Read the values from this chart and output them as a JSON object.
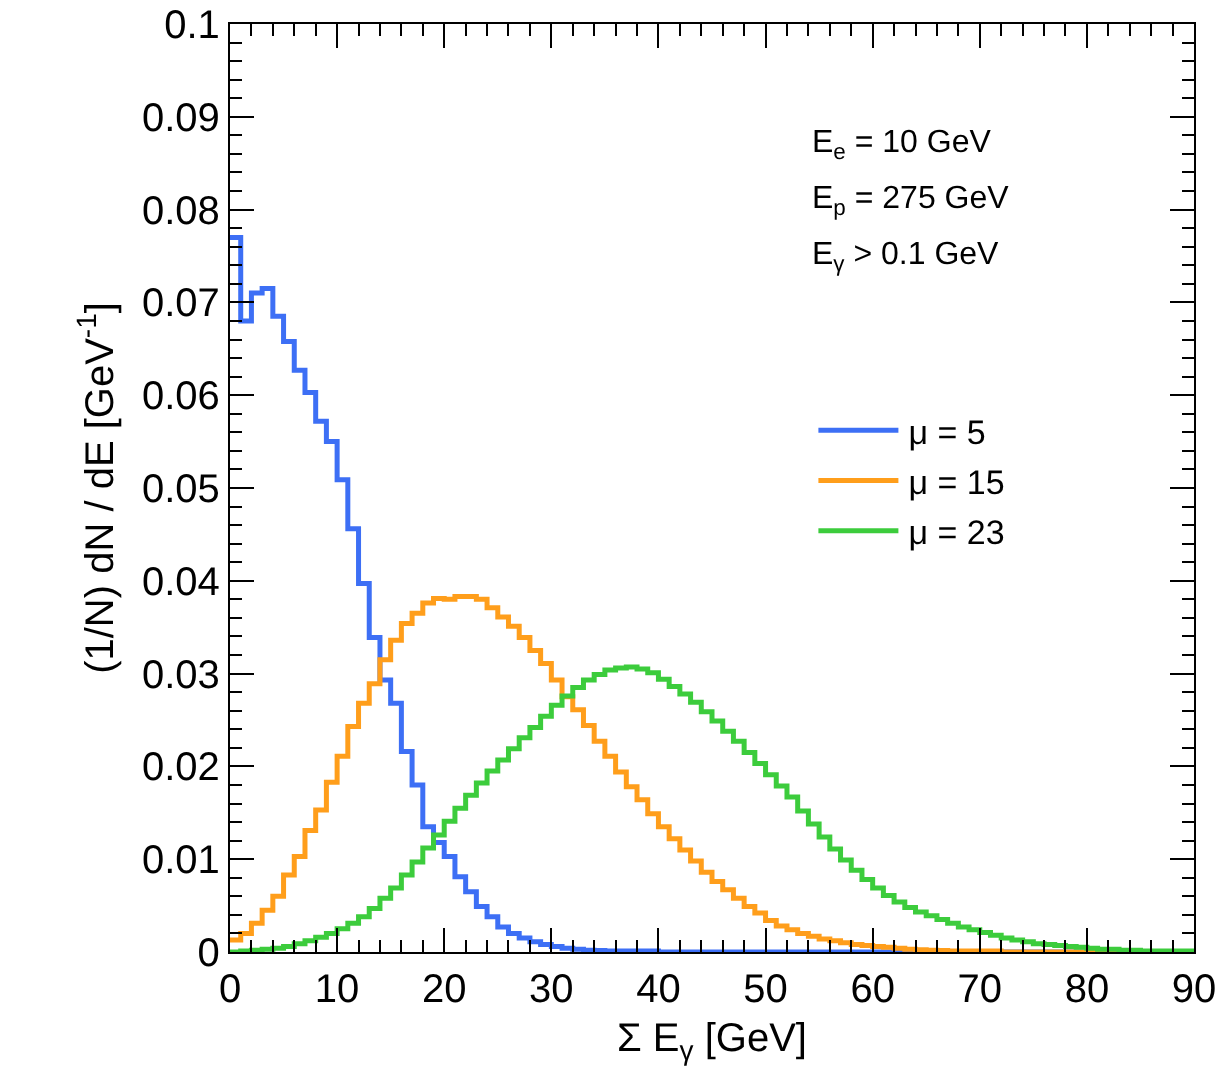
{
  "chart_data": {
    "type": "histogram",
    "xlabel": "Σ E$_{γ}$ [GeV]",
    "ylabel": "(1/N) dN / dE [GeV$^{-1}$]",
    "annotations": [
      "E$_{e}$ = 10 GeV",
      "E$_{p}$ = 275 GeV",
      "E$_{γ}$ > 0.1 GeV"
    ],
    "bins": [
      0,
      1,
      2,
      3,
      4,
      5,
      6,
      7,
      8,
      9,
      10,
      11,
      12,
      13,
      14,
      15,
      16,
      17,
      18,
      19,
      20,
      21,
      22,
      23,
      24,
      25,
      26,
      27,
      28,
      29,
      30,
      31,
      32,
      33,
      34,
      35,
      36,
      37,
      38,
      39,
      40,
      41,
      42,
      43,
      44,
      45,
      46,
      47,
      48,
      49,
      50,
      51,
      52,
      53,
      54,
      55,
      56,
      57,
      58,
      59,
      60,
      61,
      62,
      63,
      64,
      65,
      66,
      67,
      68,
      69,
      70,
      71,
      72,
      73,
      74,
      75,
      76,
      77,
      78,
      79,
      80,
      81,
      82,
      83,
      84,
      85,
      86,
      87,
      88,
      89,
      90
    ],
    "series": [
      {
        "name": "μ = 5",
        "color": "#3d6ff5",
        "values": [
          0.077,
          0.068,
          0.071,
          0.0715,
          0.0685,
          0.0658,
          0.0627,
          0.0603,
          0.0572,
          0.055,
          0.0509,
          0.0456,
          0.0397,
          0.0339,
          0.0293,
          0.0268,
          0.0216,
          0.018,
          0.0135,
          0.0118,
          0.0103,
          0.0081,
          0.0065,
          0.0049,
          0.0038,
          0.0027,
          0.002,
          0.0015,
          0.0011,
          0.0008,
          0.0006,
          0.0004,
          0.0003,
          0.0002,
          0.00015,
          0.0001,
          0.0001,
          0.0001,
          0.0001,
          0.0001,
          0,
          0,
          0,
          0,
          0,
          0,
          0,
          0,
          0,
          0,
          0,
          0,
          0,
          0,
          0,
          0,
          0,
          0,
          0,
          0,
          0,
          0,
          0,
          0,
          0,
          0,
          0,
          0,
          0,
          0,
          0,
          0,
          0,
          0,
          0,
          0,
          0,
          0,
          0,
          0,
          0,
          0,
          0,
          0,
          0,
          0,
          0,
          0,
          0,
          0
        ]
      },
      {
        "name": "μ = 15",
        "color": "#ff9e1b",
        "values": [
          0.0013,
          0.002,
          0.0031,
          0.0045,
          0.006,
          0.0083,
          0.0103,
          0.0131,
          0.0153,
          0.0183,
          0.0211,
          0.0243,
          0.0268,
          0.0289,
          0.0315,
          0.0336,
          0.0354,
          0.0365,
          0.0376,
          0.0381,
          0.038,
          0.0383,
          0.0383,
          0.038,
          0.0371,
          0.0361,
          0.0351,
          0.0339,
          0.0325,
          0.0311,
          0.0293,
          0.0275,
          0.0261,
          0.0244,
          0.0227,
          0.0211,
          0.0194,
          0.0178,
          0.0164,
          0.0149,
          0.0135,
          0.0122,
          0.011,
          0.0098,
          0.0086,
          0.0076,
          0.0067,
          0.0058,
          0.0049,
          0.0042,
          0.0034,
          0.0028,
          0.0024,
          0.002,
          0.0017,
          0.0014,
          0.0012,
          0.001,
          0.0008,
          0.0007,
          0.0006,
          0.0005,
          0.0004,
          0.0003,
          0.00025,
          0.0002,
          0.00015,
          0.00012,
          0.0001,
          0.0001,
          0.0001,
          0.0001,
          0,
          0,
          0,
          0,
          0,
          0,
          0,
          0,
          0,
          0,
          0,
          0,
          0,
          0,
          0,
          0,
          0,
          0
        ]
      },
      {
        "name": "μ = 23",
        "color": "#3ccc3c",
        "values": [
          0,
          0.0001,
          0.0002,
          0.0003,
          0.0004,
          0.0006,
          0.0009,
          0.0012,
          0.0016,
          0.002,
          0.0025,
          0.0031,
          0.0038,
          0.0047,
          0.0058,
          0.0069,
          0.0083,
          0.0097,
          0.0112,
          0.0126,
          0.0141,
          0.0155,
          0.0169,
          0.0182,
          0.0195,
          0.0207,
          0.0219,
          0.0231,
          0.0242,
          0.0254,
          0.0266,
          0.0276,
          0.0285,
          0.0293,
          0.0299,
          0.0304,
          0.0306,
          0.0307,
          0.0305,
          0.0301,
          0.0294,
          0.0286,
          0.0278,
          0.0269,
          0.0259,
          0.0249,
          0.0238,
          0.0227,
          0.0215,
          0.0203,
          0.0191,
          0.0179,
          0.0167,
          0.0152,
          0.0138,
          0.0124,
          0.0111,
          0.0099,
          0.0088,
          0.0078,
          0.0069,
          0.0061,
          0.0054,
          0.0048,
          0.0043,
          0.0039,
          0.0035,
          0.0031,
          0.0027,
          0.0024,
          0.0021,
          0.0018,
          0.0015,
          0.0013,
          0.0011,
          0.0009,
          0.0008,
          0.0007,
          0.0006,
          0.0005,
          0.0004,
          0.0003,
          0.0003,
          0.0002,
          0.0002,
          0.0001,
          0.0001,
          0.0001,
          0.0001,
          0.0001
        ]
      }
    ],
    "xlim": [
      0,
      90
    ],
    "xticks": [
      0,
      10,
      20,
      30,
      40,
      50,
      60,
      70,
      80,
      90
    ],
    "ylim": [
      0,
      0.1
    ],
    "yticks": [
      0,
      0.01,
      0.02,
      0.03,
      0.04,
      0.05,
      0.06,
      0.07,
      0.08,
      0.09,
      0.1
    ],
    "grid": false,
    "legend": "right",
    "line_style": "solid",
    "marker": "none"
  }
}
